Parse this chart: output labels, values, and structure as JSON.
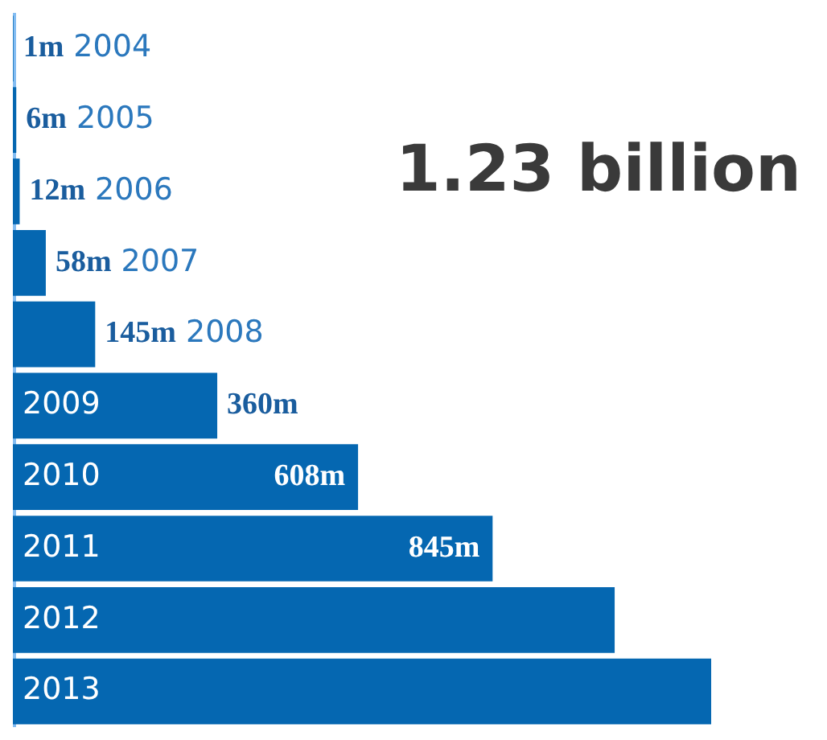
{
  "chart_data": {
    "type": "bar",
    "orientation": "horizontal",
    "categories": [
      "2004",
      "2005",
      "2006",
      "2007",
      "2008",
      "2009",
      "2010",
      "2011",
      "2012",
      "2013"
    ],
    "values": [
      1,
      6,
      12,
      58,
      145,
      360,
      608,
      845,
      1060,
      1230
    ],
    "value_labels": [
      "1m",
      "6m",
      "12m",
      "58m",
      "145m",
      "360m",
      "608m",
      "845m",
      null,
      null
    ],
    "color": "#0567b1",
    "annotations": [
      "1.23 billion"
    ]
  }
}
